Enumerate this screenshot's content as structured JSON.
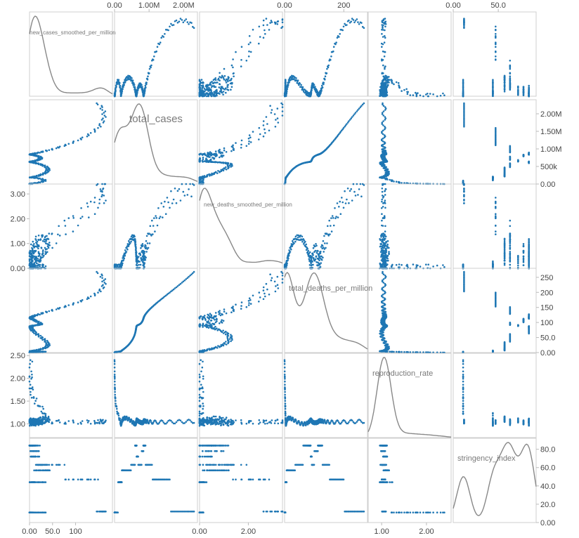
{
  "chart_data": {
    "type": "scatter",
    "kind": "scatter-plot-matrix",
    "variables": [
      {
        "name": "new_cases_smoothed_per_million",
        "range": [
          0,
          180
        ],
        "ticks": [
          0,
          50,
          100
        ],
        "tick_labels": [
          "0.00",
          "50.0",
          "100"
        ]
      },
      {
        "name": "total_cases",
        "range": [
          0,
          2400000
        ],
        "ticks": [
          0,
          1000000,
          2000000
        ],
        "tick_labels": [
          "0.00",
          "1.00M",
          "2.00M"
        ],
        "right_ticks": [
          0,
          500000,
          1000000,
          1500000,
          2000000
        ],
        "right_tick_labels": [
          "0.00",
          "500k",
          "1.00M",
          "1.50M",
          "2.00M"
        ]
      },
      {
        "name": "new_deaths_smoothed_per_million",
        "range": [
          0,
          3.4
        ],
        "ticks": [
          0,
          1,
          2,
          3
        ],
        "tick_labels": [
          "0.00",
          "1.00",
          "2.00",
          "3.00"
        ],
        "bottom_ticks": [
          0,
          2
        ],
        "bottom_tick_labels": [
          "0.00",
          "2.00"
        ]
      },
      {
        "name": "total_deaths_per_million",
        "range": [
          0,
          280
        ],
        "ticks": [
          0,
          50,
          100,
          150,
          200,
          250
        ],
        "tick_labels": [
          "0.00",
          "50.0",
          "100",
          "150",
          "200",
          "250"
        ],
        "top_ticks": [
          0,
          200
        ],
        "top_tick_labels": [
          "0.00",
          "200"
        ]
      },
      {
        "name": "reproduction_rate",
        "range": [
          0.7,
          2.55
        ],
        "ticks": [
          1.0,
          1.5,
          2.0,
          2.5
        ],
        "tick_labels": [
          "1.00",
          "1.50",
          "2.00",
          "2.50"
        ],
        "bottom_ticks": [
          1.0,
          2.0
        ],
        "bottom_tick_labels": [
          "1.00",
          "2.00"
        ]
      },
      {
        "name": "stringency_index",
        "range": [
          0,
          92
        ],
        "ticks": [
          0,
          20,
          40,
          60,
          80
        ],
        "tick_labels": [
          "0.00",
          "20.0",
          "40.0",
          "60.0",
          "80.0"
        ],
        "top_ticks": [
          0,
          50
        ],
        "top_tick_labels": [
          "0.00",
          "50.0"
        ]
      }
    ],
    "timeline_points": 300,
    "description_of_axes": {
      "top_row_columns": [
        1,
        3,
        5
      ],
      "bottom_row_columns": [
        0,
        2,
        4
      ],
      "left_column_rows": [
        2,
        4
      ],
      "right_column_rows": [
        1,
        3,
        5
      ]
    },
    "colors": {
      "points": "#1f77b4",
      "density": "#888888",
      "frame": "#cfcfcf"
    }
  }
}
